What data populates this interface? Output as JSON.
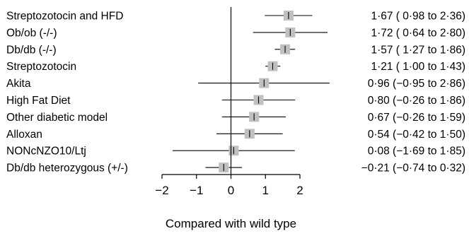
{
  "chart_data": {
    "type": "forest",
    "xlabel": "Compared with wild type",
    "xlim": [
      -2,
      2
    ],
    "xticks": [
      "−2",
      "−1",
      "0",
      "1",
      "2"
    ],
    "tick_values": [
      -2,
      -1,
      0,
      1,
      2
    ],
    "colors": {
      "marker": "#c0c0c0",
      "line": "#000000"
    },
    "rows": [
      {
        "label": "Streptozotocin and HFD",
        "estimate": 1.67,
        "lower": 0.98,
        "upper": 2.36,
        "ci_text": "1·67   ( 0·98 to 2·36)"
      },
      {
        "label": "Ob/ob (-/-)",
        "estimate": 1.72,
        "lower": 0.64,
        "upper": 2.8,
        "ci_text": "1·72   ( 0·64 to 2·80)"
      },
      {
        "label": "Db/db (-/-)",
        "estimate": 1.57,
        "lower": 1.27,
        "upper": 1.86,
        "ci_text": "1·57   ( 1·27 to 1·86)"
      },
      {
        "label": "Streptozotocin",
        "estimate": 1.21,
        "lower": 1.0,
        "upper": 1.43,
        "ci_text": "1·21   ( 1·00 to 1·43)"
      },
      {
        "label": "Akita",
        "estimate": 0.96,
        "lower": -0.95,
        "upper": 2.86,
        "ci_text": "0·96   (−0·95 to 2·86)"
      },
      {
        "label": "High Fat Diet",
        "estimate": 0.8,
        "lower": -0.26,
        "upper": 1.86,
        "ci_text": "0·80   (−0·26 to 1·86)"
      },
      {
        "label": "Other diabetic model",
        "estimate": 0.67,
        "lower": -0.26,
        "upper": 1.59,
        "ci_text": "0·67   (−0·26 to 1·59)"
      },
      {
        "label": "Alloxan",
        "estimate": 0.54,
        "lower": -0.42,
        "upper": 1.5,
        "ci_text": "0·54   (−0·42 to 1·50)"
      },
      {
        "label": "NONcNZO10/Ltj",
        "estimate": 0.08,
        "lower": -1.69,
        "upper": 1.85,
        "ci_text": "0·08   (−1·69 to 1·85)"
      },
      {
        "label": "Db/db heterozygous (+/-)",
        "estimate": -0.21,
        "lower": -0.74,
        "upper": 0.32,
        "ci_text": "−0·21   (−0·74 to 0·32)"
      }
    ]
  }
}
